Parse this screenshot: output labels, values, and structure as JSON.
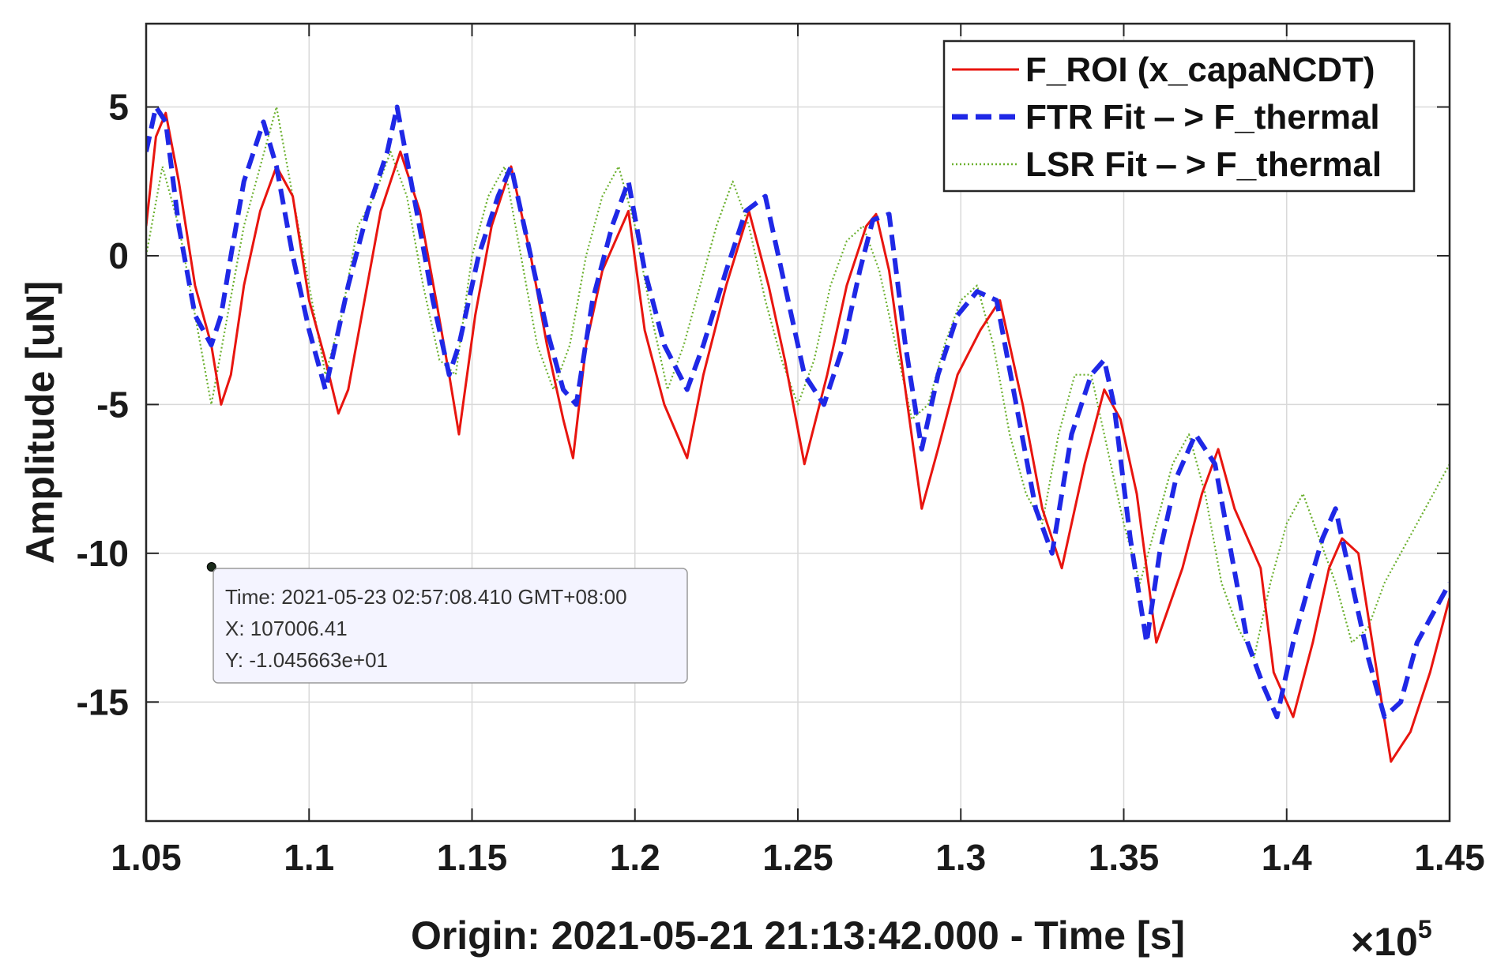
{
  "chart_data": {
    "type": "line",
    "title": "",
    "xlabel": "Origin: 2021-05-21 21:13:42.000 - Time  [s]",
    "ylabel": "Amplitude  [uN]",
    "x_exponent_label": "×10",
    "x_exponent_power": "5",
    "x_scale": 100000,
    "xlim": [
      105000,
      145000
    ],
    "ylim": [
      -19,
      7.8
    ],
    "grid": true,
    "legend_position": "top-right",
    "xtick_values": [
      105000,
      110000,
      115000,
      120000,
      125000,
      130000,
      135000,
      140000,
      145000
    ],
    "xtick_labels": [
      "1.05",
      "1.1",
      "1.15",
      "1.2",
      "1.25",
      "1.3",
      "1.35",
      "1.4",
      "1.45"
    ],
    "ytick_values": [
      5,
      0,
      -5,
      -10,
      -15
    ],
    "ytick_labels": [
      "5",
      "0",
      "-5",
      "-10",
      "-15"
    ],
    "series": [
      {
        "name": "F_ROI (x_capaNCDT)",
        "color": "#e8150f",
        "style": "solid",
        "x": [
          105000,
          105300,
          105600,
          106000,
          106500,
          107000,
          107300,
          107600,
          108000,
          108500,
          109000,
          109500,
          110000,
          110500,
          110900,
          111200,
          111700,
          112200,
          112800,
          113400,
          113900,
          114300,
          114600,
          115100,
          115600,
          116200,
          116800,
          117300,
          117800,
          118100,
          118500,
          119000,
          119800,
          120300,
          120900,
          121600,
          122100,
          122800,
          123500,
          124100,
          124600,
          125200,
          125900,
          126500,
          127100,
          127400,
          127800,
          128300,
          128800,
          129300,
          129900,
          130600,
          131200,
          131900,
          132500,
          133100,
          133800,
          134400,
          134900,
          135400,
          136000,
          136800,
          137400,
          137900,
          138400,
          138800,
          139200,
          139600,
          140200,
          140800,
          141300,
          141700,
          142200,
          142700,
          143200,
          143800,
          144400,
          145000
        ],
        "y": [
          1.0,
          4.0,
          4.8,
          2.5,
          -1.0,
          -3.0,
          -5.0,
          -4.0,
          -1.0,
          1.5,
          3.0,
          2.0,
          -1.5,
          -3.5,
          -5.3,
          -4.5,
          -1.5,
          1.5,
          3.5,
          1.5,
          -1.5,
          -4.0,
          -6.0,
          -2.0,
          1.0,
          3.0,
          0.0,
          -3.0,
          -5.5,
          -6.8,
          -3.0,
          -0.5,
          1.5,
          -2.5,
          -5.0,
          -6.8,
          -4.0,
          -1.0,
          1.5,
          -1.0,
          -3.5,
          -7.0,
          -4.0,
          -1.0,
          1.0,
          1.4,
          -0.5,
          -4.5,
          -8.5,
          -6.5,
          -4.0,
          -2.5,
          -1.5,
          -5.0,
          -8.5,
          -10.5,
          -7.0,
          -4.5,
          -5.5,
          -8.0,
          -13.0,
          -10.5,
          -8.0,
          -6.5,
          -8.5,
          -9.5,
          -10.5,
          -14.0,
          -15.5,
          -13.0,
          -10.5,
          -9.5,
          -10.0,
          -13.5,
          -17.0,
          -16.0,
          -14.0,
          -11.5
        ]
      },
      {
        "name": "FTR Fit ‒ > F_thermal",
        "color": "#1f28e6",
        "style": "dashed",
        "x": [
          105000,
          105300,
          105600,
          106000,
          106500,
          107000,
          107300,
          107600,
          108000,
          108600,
          109000,
          109500,
          110000,
          110500,
          110800,
          111200,
          111800,
          112400,
          112700,
          113300,
          113800,
          114300,
          114600,
          115200,
          115800,
          116200,
          116800,
          117300,
          117800,
          118200,
          118700,
          119300,
          119800,
          120300,
          120900,
          121600,
          122100,
          122800,
          123400,
          124000,
          124600,
          125200,
          125800,
          126400,
          126900,
          127300,
          127800,
          128300,
          128800,
          129300,
          129900,
          130500,
          131100,
          131700,
          132300,
          132800,
          133400,
          134000,
          134400,
          134700,
          135200,
          135700,
          136100,
          136600,
          137200,
          137800,
          138300,
          138800,
          139300,
          139700,
          140200,
          140700,
          141100,
          141500,
          142000,
          142500,
          143000,
          143500,
          144000,
          144500,
          145000
        ],
        "y": [
          3.5,
          5.0,
          4.5,
          1.0,
          -2.0,
          -3.0,
          -2.0,
          0.0,
          2.5,
          4.5,
          3.0,
          0.0,
          -2.5,
          -4.5,
          -3.0,
          -1.0,
          1.5,
          3.5,
          5.0,
          1.5,
          -1.5,
          -4.0,
          -3.0,
          0.0,
          2.0,
          3.0,
          0.0,
          -2.5,
          -4.5,
          -5.0,
          -1.5,
          1.0,
          2.5,
          -0.5,
          -3.0,
          -4.5,
          -3.0,
          -0.5,
          1.5,
          2.0,
          -1.0,
          -4.0,
          -5.0,
          -3.0,
          -0.5,
          1.2,
          1.4,
          -3.0,
          -6.5,
          -4.0,
          -2.0,
          -1.2,
          -1.5,
          -5.0,
          -8.5,
          -10.0,
          -6.0,
          -4.0,
          -3.5,
          -5.0,
          -9.5,
          -13.0,
          -10.0,
          -7.5,
          -6.0,
          -7.0,
          -10.0,
          -13.0,
          -14.5,
          -15.5,
          -13.0,
          -11.0,
          -9.5,
          -8.5,
          -11.0,
          -13.5,
          -15.5,
          -15.0,
          -13.0,
          -12.0,
          -11.0
        ]
      },
      {
        "name": "LSR Fit ‒ > F_thermal",
        "color": "#6bb02e",
        "style": "dotted",
        "x": [
          105000,
          105500,
          106000,
          106500,
          107000,
          107500,
          108000,
          108500,
          109000,
          109500,
          110000,
          110500,
          111000,
          111500,
          112000,
          112500,
          113000,
          113500,
          114000,
          114500,
          115000,
          115500,
          116000,
          116500,
          117000,
          117500,
          118000,
          118500,
          119000,
          119500,
          120000,
          120500,
          121000,
          121500,
          122000,
          122500,
          123000,
          123500,
          124000,
          124500,
          125000,
          125500,
          126000,
          126500,
          127000,
          127500,
          128000,
          128500,
          129000,
          129500,
          130000,
          130500,
          131000,
          131500,
          132000,
          132500,
          133000,
          133500,
          134000,
          134500,
          135000,
          135500,
          136000,
          136500,
          137000,
          137500,
          138000,
          138500,
          139000,
          139500,
          140000,
          140500,
          141000,
          141500,
          142000,
          142500,
          143000,
          143500,
          144000,
          144500,
          145000
        ],
        "y": [
          0.0,
          3.0,
          1.0,
          -2.0,
          -5.0,
          -2.0,
          1.0,
          3.0,
          5.0,
          2.0,
          -1.0,
          -4.0,
          -2.0,
          1.0,
          2.0,
          3.5,
          2.0,
          -1.0,
          -3.5,
          -4.0,
          0.0,
          2.0,
          3.0,
          0.0,
          -3.0,
          -4.5,
          -3.0,
          0.0,
          2.0,
          3.0,
          1.0,
          -2.0,
          -4.5,
          -3.0,
          -1.0,
          1.0,
          2.5,
          1.0,
          -1.5,
          -3.5,
          -5.0,
          -3.5,
          -1.0,
          0.5,
          1.0,
          -0.5,
          -3.0,
          -5.5,
          -5.0,
          -3.0,
          -1.5,
          -1.0,
          -3.0,
          -6.0,
          -8.0,
          -9.0,
          -6.0,
          -4.0,
          -4.0,
          -6.5,
          -9.0,
          -11.0,
          -9.0,
          -7.0,
          -6.0,
          -8.0,
          -11.0,
          -12.5,
          -13.5,
          -11.0,
          -9.0,
          -8.0,
          -9.5,
          -11.0,
          -13.0,
          -12.5,
          -11.0,
          -10.0,
          -9.0,
          -8.0,
          -7.0
        ]
      }
    ],
    "annotation": {
      "x": 107006.41,
      "y": -10.45663,
      "lines": [
        "Time: 2021-05-23 02:57:08.410 GMT+08:00",
        "X: 107006.41",
        "Y: -1.045663e+01"
      ]
    }
  }
}
